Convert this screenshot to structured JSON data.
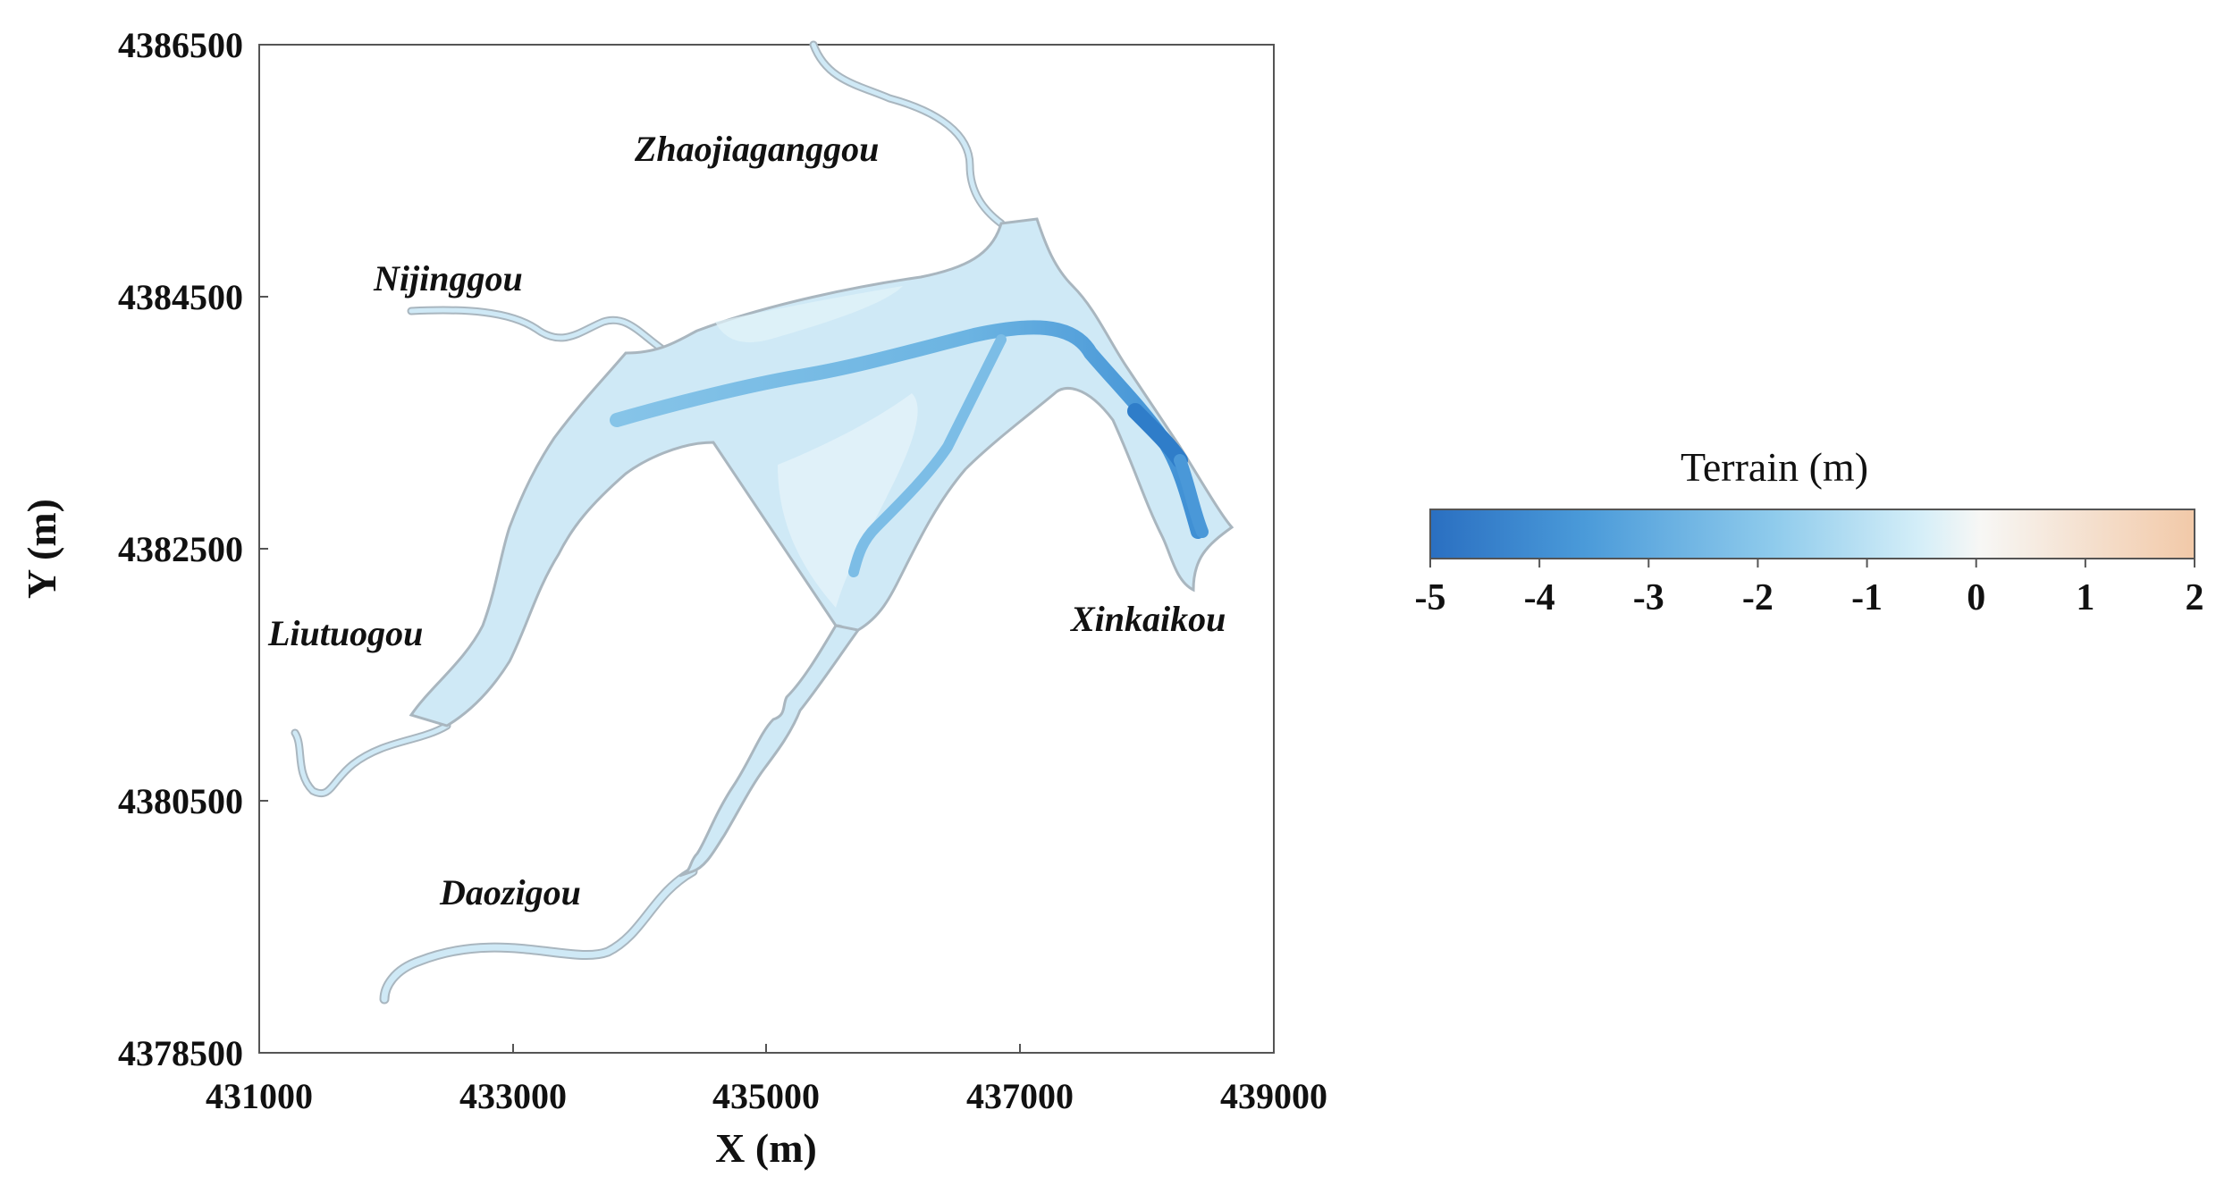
{
  "map": {
    "x_axis": {
      "label": "X (m)",
      "ticks": [
        "431000",
        "433000",
        "435000",
        "437000",
        "439000"
      ],
      "range": [
        431000,
        439000
      ]
    },
    "y_axis": {
      "label": "Y (m)",
      "ticks": [
        "4386500",
        "4384500",
        "4382500",
        "4380500",
        "4378500"
      ],
      "range": [
        4378500,
        4386500
      ]
    },
    "places": {
      "zhaojiaganggou": "Zhaojiaganggou",
      "nijinggou": "Nijinggou",
      "liutuogou": "Liutuogou",
      "daozigou": "Daozigou",
      "xinkaikou": "Xinkaikou"
    },
    "water_color": "#cfe9f6",
    "channel_color": "#5aa9dc",
    "boundary_color": "#a9b6bf"
  },
  "colorbar": {
    "title": "Terrain (m)",
    "ticks": [
      "-5",
      "-4",
      "-3",
      "-2",
      "-1",
      "0",
      "1",
      "2"
    ],
    "range": [
      -5,
      2
    ],
    "colors": [
      "#2a6fc1",
      "#4a9ad9",
      "#8fcbec",
      "#d4eef8",
      "#f7f7f5",
      "#f2c9a8"
    ]
  }
}
